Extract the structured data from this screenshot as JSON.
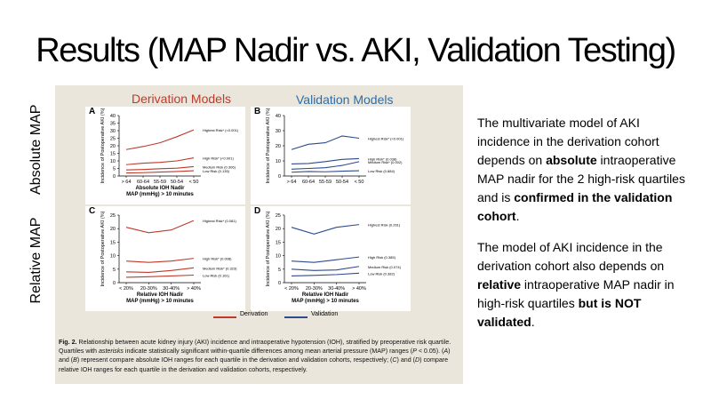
{
  "slide": {
    "title": "Results (MAP Nadir vs. AKI, Validation Testing)",
    "row_labels": [
      "Absolute MAP",
      "Relative MAP"
    ],
    "col_headers": [
      "Derivation Models",
      "Validation Models"
    ],
    "legend": [
      "Derivation",
      "Validation"
    ],
    "caption_parts": [
      {
        "bold": true,
        "text": "Fig. 2."
      },
      {
        "bold": false,
        "text": " Relationship between acute kidney injury (AKI) incidence and intraoperative hypotension (IOH), stratified by preoperative risk quartile. Quartiles with "
      },
      {
        "bold": false,
        "text": "asterisks"
      },
      {
        "bold": false,
        "text": " indicate statistically significant within-quartile differences among mean arterial pressure (MAP) ranges ("
      },
      {
        "bold": false,
        "text": "P"
      },
      {
        "bold": false,
        "text": " < 0.05). ("
      },
      {
        "bold": false,
        "text": "A"
      },
      {
        "bold": false,
        "text": ") and ("
      },
      {
        "bold": false,
        "text": "B"
      },
      {
        "bold": false,
        "text": ") represent compare absolute IOH ranges for each quartile in the derivation and validation cohorts, respectively; ("
      },
      {
        "bold": false,
        "text": "C"
      },
      {
        "bold": false,
        "text": ") and ("
      },
      {
        "bold": false,
        "text": "D"
      },
      {
        "bold": false,
        "text": ") compare relative IOH ranges for each quartile in the derivation and validation cohorts, respectively."
      }
    ],
    "paragraphs": [
      [
        {
          "bold": false,
          "text": "The multivariate model of AKI incidence in the derivation cohort depends on "
        },
        {
          "bold": true,
          "text": "absolute"
        },
        {
          "bold": false,
          "text": " intraoperative MAP nadir for the 2 high-risk quartiles and is "
        },
        {
          "bold": true,
          "text": "confirmed in the validation cohort"
        },
        {
          "bold": false,
          "text": "."
        }
      ],
      [
        {
          "bold": false,
          "text": "The model of AKI incidence in the derivation cohort also depends on "
        },
        {
          "bold": true,
          "text": "relative"
        },
        {
          "bold": false,
          "text": " intraoperative MAP nadir in high-risk quartiles "
        },
        {
          "bold": true,
          "text": "but is  NOT validated"
        },
        {
          "bold": false,
          "text": "."
        }
      ]
    ]
  },
  "colors": {
    "derivation": "#c0392b",
    "validation": "#2e4a8c",
    "header_derivation": "#c0392b",
    "header_validation": "#2e6da4"
  },
  "chart_data": [
    {
      "panel": "A",
      "type": "line",
      "ylabel": "Incidence of Postoperative AKI (%)",
      "xlabel": "Absolute IOH Nadir",
      "xlabel2": "MAP (mmHg) > 10 minutes",
      "categories": [
        "> 64",
        "60-64",
        "55-59",
        "50-54",
        "< 50"
      ],
      "ylim": [
        0,
        40
      ],
      "yticks": [
        0,
        5,
        10,
        15,
        20,
        25,
        30,
        35,
        40
      ],
      "series": [
        {
          "name": "Highest Risk* (<0.001)",
          "values": [
            17.5,
            19.5,
            22,
            26,
            30.5
          ]
        },
        {
          "name": "High Risk* (<0.001)",
          "values": [
            7.5,
            8.5,
            9,
            10,
            12
          ]
        },
        {
          "name": "Medium Risk (0.306)",
          "values": [
            4,
            4.3,
            4.8,
            5.2,
            6.2
          ]
        },
        {
          "name": "Low Risk (0.135)",
          "values": [
            2,
            2.2,
            2.6,
            3,
            3.5
          ]
        }
      ]
    },
    {
      "panel": "B",
      "type": "line",
      "ylabel": "Incidence of Postoperative AKI (%)",
      "xlabel": "",
      "xlabel2": "",
      "categories": [
        "> 64",
        "60-64",
        "55-59",
        "50-54",
        "< 50"
      ],
      "ylim": [
        0,
        40
      ],
      "yticks": [
        0,
        10,
        20,
        30,
        40
      ],
      "series": [
        {
          "name": "Highest Risk* (<0.001)",
          "values": [
            17.5,
            21,
            22,
            26.5,
            25
          ]
        },
        {
          "name": "High Risk* (0.038)",
          "values": [
            8,
            8.3,
            9.5,
            11,
            11.5
          ]
        },
        {
          "name": "Medium Risk* (0.002)",
          "values": [
            4.5,
            5,
            5.5,
            7,
            9.5
          ]
        },
        {
          "name": "Low Risk (0.884)",
          "values": [
            2.5,
            3,
            2.8,
            3.2,
            3.5
          ]
        }
      ]
    },
    {
      "panel": "C",
      "type": "line",
      "ylabel": "Incidence of Postoperative AKI (%)",
      "xlabel": "Relative IOH Nadir",
      "xlabel2": "MAP (mmHg) > 10 minutes",
      "categories": [
        "< 20%",
        "20-30%",
        "30-40%",
        "> 40%"
      ],
      "ylim": [
        0,
        25
      ],
      "yticks": [
        0,
        5,
        10,
        15,
        20,
        25
      ],
      "series": [
        {
          "name": "Highest Risk* (0.081)",
          "values": [
            20.5,
            18.5,
            19.5,
            23
          ]
        },
        {
          "name": "High Risk* (0.008)",
          "values": [
            8,
            7.5,
            8,
            9
          ]
        },
        {
          "name": "Medium Risk* (0.323)",
          "values": [
            4,
            3.8,
            4.5,
            5.5
          ]
        },
        {
          "name": "Low Risk (0.161)",
          "values": [
            2,
            2.2,
            2.5,
            2.8
          ]
        }
      ]
    },
    {
      "panel": "D",
      "type": "line",
      "ylabel": "Incidence of Postoperative AKI (%)",
      "xlabel": "Relative IOH Nadir",
      "xlabel2": "MAP (mmHg) > 10 minutes",
      "categories": [
        "< 20%",
        "20-30%",
        "30-40%",
        "> 40%"
      ],
      "ylim": [
        0,
        25
      ],
      "yticks": [
        0,
        5,
        10,
        15,
        20,
        25
      ],
      "series": [
        {
          "name": "Highest Risk (0.261)",
          "values": [
            20.5,
            18,
            20.5,
            21.5
          ]
        },
        {
          "name": "High Risk (0.385)",
          "values": [
            8,
            7.5,
            8.5,
            9.5
          ]
        },
        {
          "name": "Medium Risk (0.074)",
          "values": [
            5,
            4.5,
            4.7,
            6
          ]
        },
        {
          "name": "Low Risk (0.382)",
          "values": [
            2.5,
            2.7,
            3,
            3.5
          ]
        }
      ]
    }
  ]
}
